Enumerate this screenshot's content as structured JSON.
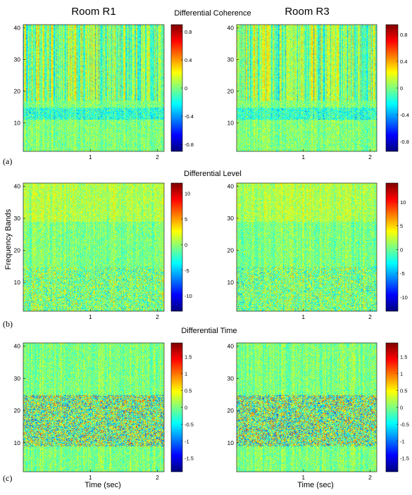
{
  "figure": {
    "column_titles": [
      "Room R1",
      "Room R3"
    ],
    "row_titles": [
      "Differential Coherence",
      "Differential Level",
      "Differential Time"
    ],
    "panel_labels": [
      "(a)",
      "(b)",
      "(c)"
    ],
    "ylabel": "Frequency Bands",
    "xlabel": "Time (sec)"
  },
  "chart_data": [
    {
      "type": "heatmap",
      "panel": "(a)",
      "column": "Room R1",
      "title": "Differential Coherence",
      "xlabel": "",
      "ylabel": "",
      "x_ticks": [
        1,
        2
      ],
      "y_ticks": [
        10,
        20,
        30,
        40
      ],
      "xlim": [
        0,
        2.1
      ],
      "ylim": [
        1,
        41
      ],
      "clim": [
        -0.9,
        0.9
      ],
      "colorbar_ticks": [
        -0.8,
        -0.4,
        0,
        0.4,
        0.8
      ],
      "colorbar_tick_labels": [
        "-0.8",
        "-0.4",
        "0",
        "0.4",
        "0.8"
      ],
      "colormap": "jet"
    },
    {
      "type": "heatmap",
      "panel": "(a)",
      "column": "Room R3",
      "title": "Differential Coherence",
      "xlabel": "",
      "ylabel": "",
      "x_ticks": [
        1,
        2
      ],
      "y_ticks": [
        10,
        20,
        30,
        40
      ],
      "xlim": [
        0,
        2.1
      ],
      "ylim": [
        1,
        41
      ],
      "clim": [
        -0.95,
        0.95
      ],
      "colorbar_ticks": [
        -0.8,
        -0.4,
        0,
        0.4,
        0.8
      ],
      "colorbar_tick_labels": [
        "-0.8",
        "-0.4",
        "0",
        "0.4",
        "0.8"
      ],
      "colormap": "jet"
    },
    {
      "type": "heatmap",
      "panel": "(b)",
      "column": "Room R1",
      "title": "Differential Level",
      "xlabel": "",
      "ylabel": "Frequency Bands",
      "x_ticks": [
        1,
        2
      ],
      "y_ticks": [
        10,
        20,
        30,
        40
      ],
      "xlim": [
        0,
        2.1
      ],
      "ylim": [
        1,
        41
      ],
      "clim": [
        -13,
        12
      ],
      "colorbar_ticks": [
        -10,
        -5,
        0,
        5,
        10
      ],
      "colorbar_tick_labels": [
        "-10",
        "-5",
        "0",
        "5",
        "10"
      ],
      "colormap": "jet"
    },
    {
      "type": "heatmap",
      "panel": "(b)",
      "column": "Room R3",
      "title": "Differential Level",
      "xlabel": "",
      "ylabel": "",
      "x_ticks": [
        1,
        2
      ],
      "y_ticks": [
        10,
        20,
        30,
        40
      ],
      "xlim": [
        0,
        2.1
      ],
      "ylim": [
        1,
        41
      ],
      "clim": [
        -13,
        14
      ],
      "colorbar_ticks": [
        -10,
        -5,
        0,
        5,
        10
      ],
      "colorbar_tick_labels": [
        "-10",
        "-5",
        "0",
        "5",
        "10"
      ],
      "colormap": "jet"
    },
    {
      "type": "heatmap",
      "panel": "(c)",
      "column": "Room R1",
      "title": "Differential Time",
      "xlabel": "Time (sec)",
      "ylabel": "",
      "x_ticks": [
        1,
        2
      ],
      "y_ticks": [
        10,
        20,
        30,
        40
      ],
      "xlim": [
        0,
        2.1
      ],
      "ylim": [
        1,
        41
      ],
      "clim": [
        -1.9,
        1.9
      ],
      "colorbar_ticks": [
        -1.5,
        -1,
        -0.5,
        0,
        0.5,
        1,
        1.5
      ],
      "colorbar_tick_labels": [
        "-1.5",
        "-1",
        "-0.5",
        "0",
        "0.5",
        "1",
        "1.5"
      ],
      "colormap": "jet"
    },
    {
      "type": "heatmap",
      "panel": "(c)",
      "column": "Room R3",
      "title": "Differential Time",
      "xlabel": "Time (sec)",
      "ylabel": "",
      "x_ticks": [
        1,
        2
      ],
      "y_ticks": [
        10,
        20,
        30,
        40
      ],
      "xlim": [
        0,
        2.1
      ],
      "ylim": [
        1,
        41
      ],
      "clim": [
        -1.9,
        1.9
      ],
      "colorbar_ticks": [
        -1.5,
        -1,
        -0.5,
        0,
        0.5,
        1,
        1.5
      ],
      "colorbar_tick_labels": [
        "-1.5",
        "-1",
        "-0.5",
        "0",
        "0.5",
        "1",
        "1.5"
      ],
      "colormap": "jet"
    }
  ]
}
